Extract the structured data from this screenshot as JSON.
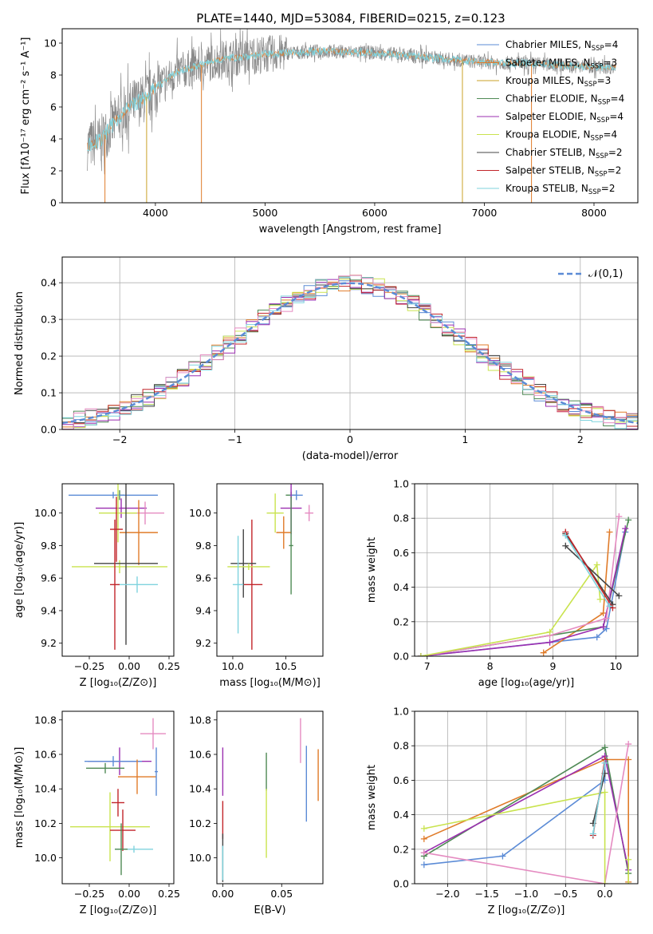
{
  "title": "PLATE=1440, MJD=53084, FIBERID=0215, z=0.123",
  "colors": {
    "c1": "#5b8bd6",
    "c2": "#e07b29",
    "c3": "#c9a227",
    "c4": "#4f8a55",
    "c5": "#9b2fb0",
    "c6": "#c9e34e",
    "c7": "#444444",
    "c8": "#c2252a",
    "c9": "#7fd3de",
    "pink": "#e58bc1",
    "grey": "#8a8a8a"
  },
  "chart_data": [
    {
      "id": "spectrum",
      "type": "line",
      "xlabel": "wavelength [Angstrom, rest frame]",
      "ylabel": "Flux [fλ10⁻¹⁷ erg cm⁻² s⁻¹ A⁻¹]",
      "xlim": [
        3150,
        8400
      ],
      "ylim": [
        0,
        10.9
      ],
      "xticks": [
        "4000",
        "5000",
        "6000",
        "7000",
        "8000"
      ],
      "xtick_values": [
        4000,
        5000,
        6000,
        7000,
        8000
      ],
      "yticks": [
        "0",
        "2",
        "4",
        "6",
        "8",
        "10"
      ],
      "ytick_values": [
        0,
        2,
        4,
        6,
        8,
        10
      ],
      "legend_position": "upper-right",
      "legend": [
        {
          "label": "Chabrier MILES, N",
          "sub": "SSP",
          "suffix": "=4",
          "color": "c1"
        },
        {
          "label": "Salpeter MILES, N",
          "sub": "SSP",
          "suffix": "=3",
          "color": "c2"
        },
        {
          "label": "Kroupa MILES, N",
          "sub": "SSP",
          "suffix": "=3",
          "color": "c3"
        },
        {
          "label": "Chabrier ELODIE, N",
          "sub": "SSP",
          "suffix": "=4",
          "color": "c4"
        },
        {
          "label": "Salpeter ELODIE, N",
          "sub": "SSP",
          "suffix": "=4",
          "color": "c5"
        },
        {
          "label": "Kroupa ELODIE, N",
          "sub": "SSP",
          "suffix": "=4",
          "color": "c6"
        },
        {
          "label": "Chabrier STELIB, N",
          "sub": "SSP",
          "suffix": "=2",
          "color": "c7"
        },
        {
          "label": "Salpeter STELIB, N",
          "sub": "SSP",
          "suffix": "=2",
          "color": "c8"
        },
        {
          "label": "Kroupa STELIB, N",
          "sub": "SSP",
          "suffix": "=2",
          "color": "c9"
        }
      ],
      "continuum": [
        [
          3380,
          3.6
        ],
        [
          3500,
          3.9
        ],
        [
          3600,
          4.8
        ],
        [
          3700,
          5.6
        ],
        [
          3800,
          6.2
        ],
        [
          3900,
          6.5
        ],
        [
          4000,
          7.2
        ],
        [
          4200,
          8.2
        ],
        [
          4400,
          8.6
        ],
        [
          4600,
          9.0
        ],
        [
          5000,
          9.3
        ],
        [
          5500,
          9.5
        ],
        [
          6000,
          9.4
        ],
        [
          6500,
          9.1
        ],
        [
          7000,
          8.8
        ],
        [
          7500,
          8.7
        ],
        [
          8000,
          8.5
        ],
        [
          8200,
          8.5
        ]
      ],
      "model_drops": [
        [
          3540,
          "c2"
        ],
        [
          3920,
          "c3"
        ],
        [
          4420,
          "c2"
        ],
        [
          6800,
          "c3"
        ],
        [
          7430,
          "c2"
        ]
      ]
    },
    {
      "id": "residuals",
      "type": "histogram",
      "xlabel": "(data-model)/error",
      "ylabel": "Normed distribution",
      "xlim": [
        -2.5,
        2.5
      ],
      "ylim": [
        0,
        0.47
      ],
      "xticks": [
        "−2",
        "−1",
        "0",
        "1",
        "2"
      ],
      "xtick_values": [
        -2,
        -1,
        0,
        1,
        2
      ],
      "yticks": [
        "0.0",
        "0.1",
        "0.2",
        "0.3",
        "0.4"
      ],
      "ytick_values": [
        0,
        0.1,
        0.2,
        0.3,
        0.4
      ],
      "grid": true,
      "legend_position": "upper-right",
      "normal_label": "𝒩(0,1)",
      "normal_color": "#5b8bd6",
      "bin_width": 0.1
    },
    {
      "id": "age_vs_Z",
      "type": "errorbar",
      "xlabel": "Z [log₁₀(Z/Z⊙)]",
      "ylabel": "age  [log₁₀(age/yr)]",
      "xlim": [
        -0.42,
        0.28
      ],
      "ylim": [
        9.12,
        10.18
      ],
      "xticks": [
        "−0.25",
        "0.00",
        "0.25"
      ],
      "xtick_values": [
        -0.25,
        0,
        0.25
      ],
      "yticks": [
        "9.2",
        "9.4",
        "9.6",
        "9.8",
        "10.0"
      ],
      "ytick_values": [
        9.2,
        9.4,
        9.6,
        9.8,
        10.0
      ],
      "points": [
        {
          "x": -0.06,
          "xerr": 0.03,
          "y": 10.11,
          "yerr": 0.03,
          "color": "c4"
        },
        {
          "x": -0.1,
          "xerr": 0.28,
          "y": 10.11,
          "yerr": 0.02,
          "color": "c1"
        },
        {
          "x": -0.05,
          "xerr": 0.16,
          "y": 10.03,
          "yerr": 0.06,
          "color": "c5"
        },
        {
          "x": 0.1,
          "xerr": 0.12,
          "y": 10.0,
          "yerr": 0.07,
          "color": "pink"
        },
        {
          "x": -0.07,
          "xerr": 0.12,
          "y": 10.0,
          "yerr": 0.18,
          "color": "c6"
        },
        {
          "x": 0.06,
          "xerr": 0.12,
          "y": 9.88,
          "yerr": 0.2,
          "color": "c2"
        },
        {
          "x": -0.08,
          "xerr": 0.04,
          "y": 9.9,
          "yerr": 0.2,
          "color": "c8"
        },
        {
          "x": -0.06,
          "xerr": 0.3,
          "y": 9.67,
          "yerr": 0.04,
          "color": "c6"
        },
        {
          "x": -0.02,
          "xerr": 0.2,
          "y": 9.69,
          "yerr": 0.5,
          "color": "c7"
        },
        {
          "x": 0.05,
          "xerr": 0.13,
          "y": 9.56,
          "yerr": 0.05,
          "color": "c9"
        },
        {
          "x": -0.09,
          "xerr": 0.03,
          "y": 9.56,
          "yerr": 0.4,
          "color": "c8"
        }
      ]
    },
    {
      "id": "age_vs_mass",
      "type": "errorbar",
      "xlabel": "mass [log₁₀(M/M⊙)]",
      "ylabel": "",
      "xlim": [
        9.85,
        10.85
      ],
      "ylim": [
        9.12,
        10.18
      ],
      "xticks": [
        "10.0",
        "10.5"
      ],
      "xtick_values": [
        10.0,
        10.5
      ],
      "yticks": [
        "9.2",
        "9.4",
        "9.6",
        "9.8",
        "10.0"
      ],
      "ytick_values": [
        9.2,
        9.4,
        9.6,
        9.8,
        10.0
      ],
      "points": [
        {
          "x": 10.55,
          "xerr": 0.05,
          "y": 10.11,
          "yerr": 0.02,
          "color": "c4"
        },
        {
          "x": 10.6,
          "xerr": 0.06,
          "y": 10.11,
          "yerr": 0.03,
          "color": "c1"
        },
        {
          "x": 10.55,
          "xerr": 0.1,
          "y": 10.03,
          "yerr": 0.16,
          "color": "c5"
        },
        {
          "x": 10.72,
          "xerr": 0.04,
          "y": 10.0,
          "yerr": 0.05,
          "color": "pink"
        },
        {
          "x": 10.4,
          "xerr": 0.08,
          "y": 10.0,
          "yerr": 0.12,
          "color": "c6"
        },
        {
          "x": 10.48,
          "xerr": 0.07,
          "y": 9.88,
          "yerr": 0.1,
          "color": "c2"
        },
        {
          "x": 10.18,
          "xerr": 0.1,
          "y": 9.56,
          "yerr": 0.4,
          "color": "c8"
        },
        {
          "x": 10.1,
          "xerr": 0.12,
          "y": 9.69,
          "yerr": 0.21,
          "color": "c7"
        },
        {
          "x": 10.15,
          "xerr": 0.2,
          "y": 9.67,
          "yerr": 0.02,
          "color": "c6"
        },
        {
          "x": 10.05,
          "xerr": 0.05,
          "y": 9.56,
          "yerr": 0.3,
          "color": "c9"
        },
        {
          "x": 10.55,
          "xerr": 0.02,
          "y": 9.8,
          "yerr": 0.3,
          "color": "c4"
        }
      ]
    },
    {
      "id": "mass_weight_vs_age",
      "type": "line",
      "xlabel": "age  [log₁₀(age/yr)]",
      "ylabel": "mass weight",
      "xlim": [
        6.8,
        10.35
      ],
      "ylim": [
        0,
        1
      ],
      "xticks": [
        "7",
        "8",
        "9",
        "10"
      ],
      "xtick_values": [
        7,
        8,
        9,
        10
      ],
      "yticks": [
        "0.0",
        "0.2",
        "0.4",
        "0.6",
        "0.8",
        "1.0"
      ],
      "ytick_values": [
        0,
        0.2,
        0.4,
        0.6,
        0.8,
        1.0
      ],
      "grid": true,
      "series": [
        {
          "color": "c1",
          "x": [
            6.9,
            9.7,
            9.85,
            10.15
          ],
          "y": [
            0.0,
            0.11,
            0.16,
            0.72
          ]
        },
        {
          "color": "c2",
          "x": [
            8.85,
            9.8,
            9.9
          ],
          "y": [
            0.02,
            0.25,
            0.72
          ]
        },
        {
          "color": "c4",
          "x": [
            6.9,
            9.8,
            10.2
          ],
          "y": [
            0.0,
            0.17,
            0.79
          ]
        },
        {
          "color": "c5",
          "x": [
            6.9,
            8.95,
            9.8,
            10.15
          ],
          "y": [
            0.0,
            0.08,
            0.17,
            0.74
          ]
        },
        {
          "color": "pink",
          "x": [
            6.9,
            8.95,
            9.85,
            10.05
          ],
          "y": [
            0.0,
            0.12,
            0.22,
            0.81
          ]
        },
        {
          "color": "c6",
          "x": [
            6.9,
            8.95,
            9.7,
            9.75
          ],
          "y": [
            0.0,
            0.14,
            0.53,
            0.33
          ]
        },
        {
          "color": "c7",
          "x": [
            9.2,
            10.05
          ],
          "y": [
            0.64,
            0.35
          ]
        },
        {
          "color": "c7",
          "x": [
            9.2,
            9.95
          ],
          "y": [
            0.71,
            0.3
          ]
        },
        {
          "color": "c8",
          "x": [
            9.2,
            9.95
          ],
          "y": [
            0.72,
            0.28
          ]
        },
        {
          "color": "c9",
          "x": [
            9.2,
            9.9
          ],
          "y": [
            0.7,
            0.29
          ]
        }
      ]
    },
    {
      "id": "mass_vs_Z",
      "type": "errorbar",
      "xlabel": "Z [log₁₀(Z/Z⊙)]",
      "ylabel": "mass [log₁₀(M/M⊙)]",
      "xlim": [
        -0.42,
        0.28
      ],
      "ylim": [
        9.85,
        10.85
      ],
      "xticks": [
        "−0.25",
        "0.00",
        "0.25"
      ],
      "xtick_values": [
        -0.25,
        0,
        0.25
      ],
      "yticks": [
        "10.0",
        "10.2",
        "10.4",
        "10.6",
        "10.8"
      ],
      "ytick_values": [
        10.0,
        10.2,
        10.4,
        10.6,
        10.8
      ],
      "points": [
        {
          "x": 0.15,
          "xerr": 0.08,
          "y": 10.72,
          "yerr": 0.09,
          "color": "pink"
        },
        {
          "x": -0.06,
          "xerr": 0.2,
          "y": 10.56,
          "yerr": 0.08,
          "color": "c5"
        },
        {
          "x": -0.1,
          "xerr": 0.18,
          "y": 10.56,
          "yerr": 0.03,
          "color": "c1"
        },
        {
          "x": -0.15,
          "xerr": 0.12,
          "y": 10.52,
          "yerr": 0.03,
          "color": "c4"
        },
        {
          "x": 0.05,
          "xerr": 0.12,
          "y": 10.47,
          "yerr": 0.1,
          "color": "c2"
        },
        {
          "x": -0.07,
          "xerr": 0.04,
          "y": 10.32,
          "yerr": 0.08,
          "color": "c8"
        },
        {
          "x": -0.12,
          "xerr": 0.25,
          "y": 10.18,
          "yerr": 0.2,
          "color": "c6"
        },
        {
          "x": -0.04,
          "xerr": 0.08,
          "y": 10.16,
          "yerr": 0.12,
          "color": "c8"
        },
        {
          "x": 0.03,
          "xerr": 0.12,
          "y": 10.05,
          "yerr": 0.02,
          "color": "c9"
        },
        {
          "x": -0.05,
          "xerr": 0.04,
          "y": 10.05,
          "yerr": 0.15,
          "color": "c4"
        },
        {
          "x": 0.17,
          "xerr": 0.01,
          "y": 10.5,
          "yerr": 0.14,
          "color": "c1"
        }
      ]
    },
    {
      "id": "mass_vs_ebv",
      "type": "errorbar",
      "xlabel": "E(B-V)",
      "ylabel": "",
      "xlim": [
        -0.005,
        0.085
      ],
      "ylim": [
        9.85,
        10.85
      ],
      "xticks": [
        "0.00",
        "0.05"
      ],
      "xtick_values": [
        0,
        0.05
      ],
      "yticks": [
        "10.0",
        "10.2",
        "10.4",
        "10.6",
        "10.8"
      ],
      "ytick_values": [
        10.0,
        10.2,
        10.4,
        10.6,
        10.8
      ],
      "points": [
        {
          "x": 0.0,
          "y": 10.5,
          "yerr": 0.14,
          "color": "c5"
        },
        {
          "x": 0.0,
          "y": 10.22,
          "yerr": 0.11,
          "color": "c8"
        },
        {
          "x": 0.0,
          "y": 10.0,
          "yerr": 0.14,
          "color": "c7"
        },
        {
          "x": 0.0,
          "y": 9.97,
          "yerr": 0.1,
          "color": "c9"
        },
        {
          "x": 0.037,
          "y": 10.5,
          "yerr": 0.11,
          "color": "c4"
        },
        {
          "x": 0.037,
          "y": 10.2,
          "yerr": 0.2,
          "color": "c6"
        },
        {
          "x": 0.066,
          "y": 10.68,
          "yerr": 0.13,
          "color": "pink"
        },
        {
          "x": 0.071,
          "y": 10.43,
          "yerr": 0.22,
          "color": "c1"
        },
        {
          "x": 0.081,
          "y": 10.48,
          "yerr": 0.15,
          "color": "c2"
        }
      ]
    },
    {
      "id": "mass_weight_vs_Z",
      "type": "line",
      "xlabel": "Z [log₁₀(Z/Z⊙)]",
      "ylabel": "mass weight",
      "xlim": [
        -2.42,
        0.42
      ],
      "ylim": [
        0,
        1
      ],
      "xticks": [
        "−2.0",
        "−1.5",
        "−1.0",
        "−0.5",
        "0.0"
      ],
      "xtick_values": [
        -2,
        -1.5,
        -1,
        -0.5,
        0
      ],
      "yticks": [
        "0.0",
        "0.2",
        "0.4",
        "0.6",
        "0.8",
        "1.0"
      ],
      "ytick_values": [
        0,
        0.2,
        0.4,
        0.6,
        0.8,
        1.0
      ],
      "grid": true,
      "series": [
        {
          "color": "c1",
          "x": [
            -2.3,
            -1.3,
            0.0,
            0.0
          ],
          "y": [
            0.11,
            0.16,
            0.6,
            0.72
          ]
        },
        {
          "color": "c2",
          "x": [
            -2.3,
            0.0,
            0.3,
            0.3
          ],
          "y": [
            0.26,
            0.72,
            0.72,
            0.01
          ]
        },
        {
          "color": "c4",
          "x": [
            -2.3,
            0.0,
            0.3
          ],
          "y": [
            0.16,
            0.79,
            0.06
          ]
        },
        {
          "color": "c5",
          "x": [
            -2.3,
            0.0,
            0.3
          ],
          "y": [
            0.18,
            0.74,
            0.08
          ]
        },
        {
          "color": "pink",
          "x": [
            -2.3,
            0.0,
            0.3
          ],
          "y": [
            0.18,
            0.0,
            0.81
          ]
        },
        {
          "color": "c6",
          "x": [
            -2.3,
            0.0,
            0.0
          ],
          "y": [
            0.32,
            0.53,
            0.0
          ]
        },
        {
          "color": "c6",
          "x": [
            0.3,
            0.3
          ],
          "y": [
            0.0,
            0.14
          ]
        },
        {
          "color": "c7",
          "x": [
            -0.15,
            0.0
          ],
          "y": [
            0.35,
            0.64
          ]
        },
        {
          "color": "c8",
          "x": [
            -0.15,
            0.0
          ],
          "y": [
            0.28,
            0.72
          ]
        },
        {
          "color": "c9",
          "x": [
            -0.15,
            0.0
          ],
          "y": [
            0.29,
            0.7
          ]
        }
      ]
    }
  ]
}
